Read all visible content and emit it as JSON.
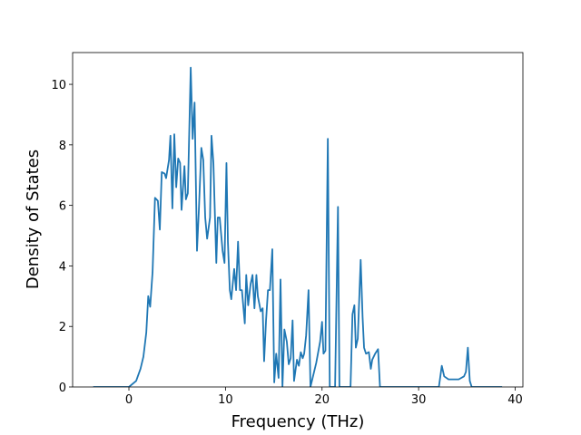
{
  "chart_data": {
    "type": "line",
    "xlabel": "Frequency (THz)",
    "ylabel": "Density of States",
    "color": "#1f77b4",
    "x": [
      -3.7,
      0,
      0.75,
      1.2,
      1.5,
      1.8,
      2.0,
      2.2,
      2.45,
      2.7,
      3.0,
      3.2,
      3.4,
      3.7,
      3.85,
      4.15,
      4.3,
      4.5,
      4.7,
      4.9,
      5.1,
      5.3,
      5.45,
      5.75,
      5.9,
      6.1,
      6.4,
      6.6,
      6.8,
      7.05,
      7.25,
      7.5,
      7.7,
      7.9,
      8.1,
      8.4,
      8.55,
      8.75,
      9.05,
      9.2,
      9.4,
      9.7,
      9.9,
      10.1,
      10.25,
      10.45,
      10.6,
      10.9,
      11.1,
      11.3,
      11.5,
      11.7,
      12.0,
      12.15,
      12.35,
      12.6,
      12.8,
      13.0,
      13.2,
      13.35,
      13.65,
      13.85,
      14.0,
      14.2,
      14.4,
      14.6,
      14.85,
      15.05,
      15.25,
      15.5,
      15.7,
      15.9,
      16.1,
      16.35,
      16.55,
      16.75,
      16.95,
      17.1,
      17.4,
      17.6,
      17.8,
      18.0,
      18.15,
      18.35,
      18.6,
      18.8,
      19.4,
      19.8,
      20.0,
      20.15,
      20.35,
      20.6,
      20.8,
      21.35,
      21.65,
      21.8,
      22.95,
      23.15,
      23.35,
      23.5,
      23.7,
      24.0,
      24.2,
      24.35,
      24.55,
      24.85,
      25.05,
      25.2,
      25.5,
      25.8,
      26.0,
      32.1,
      32.4,
      32.65,
      33.1,
      34.15,
      34.7,
      34.9,
      35.1,
      35.3,
      35.5,
      38.65
    ],
    "values": [
      0,
      0,
      0.2,
      0.6,
      1.0,
      1.8,
      3.0,
      2.65,
      3.8,
      6.25,
      6.15,
      5.2,
      7.1,
      7.05,
      6.9,
      7.5,
      8.3,
      5.9,
      8.35,
      6.6,
      7.55,
      7.4,
      5.85,
      7.3,
      6.2,
      6.4,
      10.55,
      8.2,
      9.4,
      4.5,
      5.9,
      7.9,
      7.5,
      5.6,
      4.9,
      5.6,
      8.3,
      7.4,
      4.1,
      5.6,
      5.6,
      4.5,
      4.1,
      7.4,
      4.8,
      3.2,
      2.9,
      3.9,
      3.2,
      4.8,
      3.2,
      3.2,
      2.1,
      3.7,
      2.7,
      3.4,
      3.7,
      2.6,
      3.7,
      3.0,
      2.5,
      2.6,
      0.85,
      2.2,
      3.2,
      3.2,
      4.55,
      0.15,
      1.1,
      0.3,
      3.55,
      0,
      1.9,
      1.5,
      0.75,
      0.95,
      2.2,
      0.2,
      0.9,
      0.7,
      1.15,
      0.95,
      1.1,
      1.7,
      3.2,
      0,
      0.8,
      1.5,
      2.15,
      1.1,
      1.2,
      8.2,
      0,
      0,
      5.95,
      0,
      0,
      2.4,
      2.7,
      1.3,
      1.6,
      4.2,
      2.3,
      1.3,
      1.1,
      1.15,
      0.6,
      0.9,
      1.1,
      1.25,
      0,
      0,
      0.7,
      0.35,
      0.25,
      0.25,
      0.35,
      0.5,
      1.3,
      0.2,
      0,
      0
    ],
    "xlim": [
      -5.83,
      40.8
    ],
    "ylim": [
      0,
      11.05
    ],
    "xticks": [
      0,
      10,
      20,
      30,
      40
    ],
    "yticks": [
      0,
      2,
      4,
      6,
      8,
      10
    ]
  }
}
